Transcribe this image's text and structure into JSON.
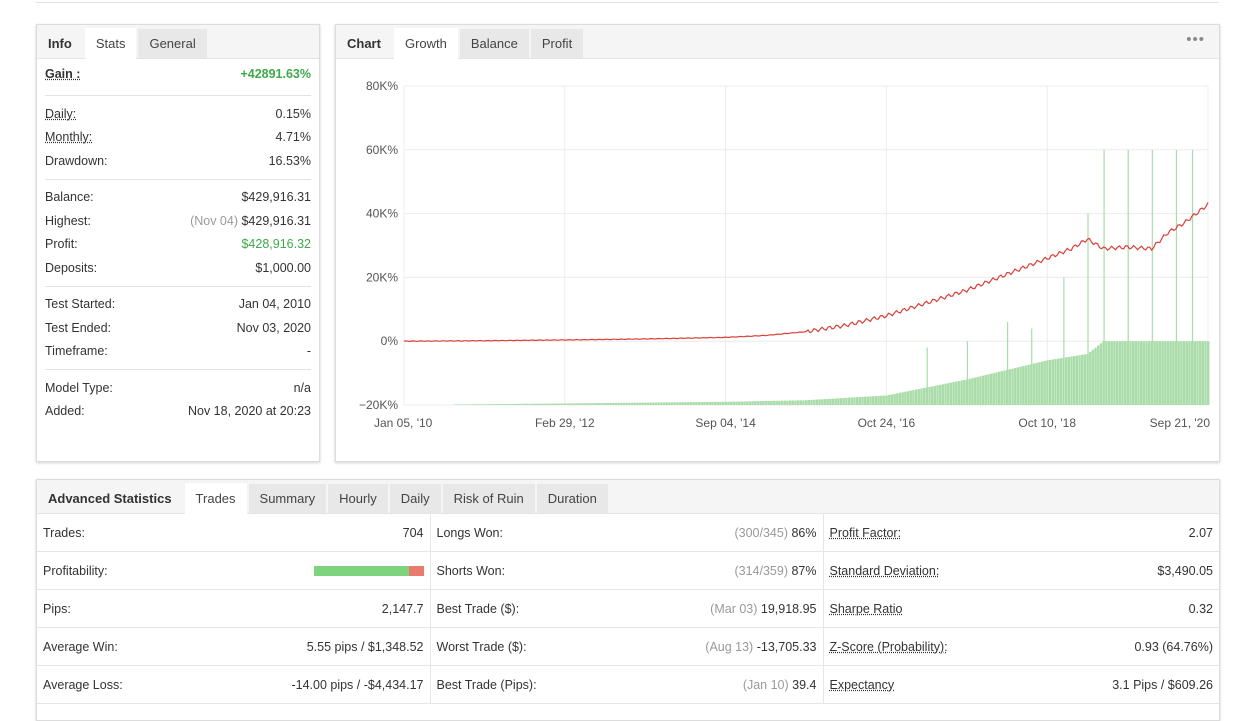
{
  "info_panel": {
    "tabs": [
      "Info",
      "Stats",
      "General"
    ],
    "active_tab": "Stats",
    "gain": {
      "label": "Gain :",
      "value": "+42891.63%"
    },
    "daily": {
      "label": "Daily:",
      "value": "0.15%"
    },
    "monthly": {
      "label": "Monthly:",
      "value": "4.71%"
    },
    "drawdown": {
      "label": "Drawdown:",
      "value": "16.53%"
    },
    "balance": {
      "label": "Balance:",
      "value": "$429,916.31"
    },
    "highest": {
      "label": "Highest:",
      "date": "(Nov 04)",
      "value": "$429,916.31"
    },
    "profit": {
      "label": "Profit:",
      "value": "$428,916.32"
    },
    "deposits": {
      "label": "Deposits:",
      "value": "$1,000.00"
    },
    "test_started": {
      "label": "Test Started:",
      "value": "Jan 04, 2010"
    },
    "test_ended": {
      "label": "Test Ended:",
      "value": "Nov 03, 2020"
    },
    "timeframe": {
      "label": "Timeframe:",
      "value": "-"
    },
    "model_type": {
      "label": "Model Type:",
      "value": "n/a"
    },
    "added": {
      "label": "Added:",
      "value": "Nov 18, 2020 at 20:23"
    }
  },
  "chart_panel": {
    "title": "Chart",
    "tabs": [
      "Growth",
      "Balance",
      "Profit"
    ],
    "active_tab": "Growth",
    "menu_icon": "more-dots-icon"
  },
  "chart_data": {
    "type": "line",
    "title": "Growth",
    "xlabel": "",
    "ylabel": "",
    "ylim": [
      -20000,
      80000
    ],
    "y_ticks": [
      "80K%",
      "60K%",
      "40K%",
      "20K%",
      "0%",
      "−20K%"
    ],
    "y_tick_values": [
      80000,
      60000,
      40000,
      20000,
      0,
      -20000
    ],
    "x_ticks": [
      "Jan 05, '10",
      "Feb 29, '12",
      "Sep 04, '14",
      "Oct 24, '16",
      "Oct 10, '18",
      "Sep 21, '20"
    ],
    "series": [
      {
        "name": "Growth",
        "color": "#d9413a",
        "x": [
          0,
          0.1,
          0.2,
          0.3,
          0.4,
          0.45,
          0.5,
          0.55,
          0.6,
          0.65,
          0.7,
          0.75,
          0.8,
          0.83,
          0.85,
          0.87,
          0.9,
          0.93,
          0.95,
          0.97,
          1.0
        ],
        "values": [
          0,
          150,
          400,
          700,
          1200,
          1800,
          3000,
          5000,
          8000,
          12000,
          16000,
          21000,
          26000,
          29000,
          32000,
          29000,
          29500,
          29000,
          34000,
          37000,
          42891
        ]
      },
      {
        "name": "Drawdown bars",
        "color": "#a9dca9",
        "type": "bar",
        "x": [
          0,
          0.2,
          0.4,
          0.5,
          0.6,
          0.7,
          0.75,
          0.8,
          0.85,
          0.87,
          0.9,
          0.95,
          1.0
        ],
        "values": [
          -20000,
          -19500,
          -19000,
          -18500,
          -17000,
          -12000,
          -9000,
          -6000,
          -4000,
          0,
          0,
          0,
          0
        ]
      }
    ]
  },
  "advanced": {
    "title": "Advanced Statistics",
    "tabs": [
      "Trades",
      "Summary",
      "Hourly",
      "Daily",
      "Risk of Ruin",
      "Duration"
    ],
    "active_tab": "Trades",
    "rows": [
      {
        "l1": "Trades:",
        "v1": "704",
        "l2": "Longs Won:",
        "p2": "(300/345)",
        "v2": "86%",
        "l3": "Profit Factor:",
        "v3": "2.07"
      },
      {
        "l1": "Profitability:",
        "v1": "",
        "l2": "Shorts Won:",
        "p2": "(314/359)",
        "v2": "87%",
        "l3": "Standard Deviation:",
        "v3": "$3,490.05"
      },
      {
        "l1": "Pips:",
        "v1": "2,147.7",
        "l2": "Best Trade ($):",
        "p2": "(Mar 03)",
        "v2": "19,918.95",
        "l3": "Sharpe Ratio",
        "v3": "0.32"
      },
      {
        "l1": "Average Win:",
        "v1": "5.55 pips / $1,348.52",
        "l2": "Worst Trade ($):",
        "p2": "(Aug 13)",
        "v2": "-13,705.33",
        "l3": "Z-Score (Probability):",
        "v3": "0.93 (64.76%)"
      },
      {
        "l1": "Average Loss:",
        "v1": "-14.00 pips / -$4,434.17",
        "l2": "Best Trade (Pips):",
        "p2": "(Jan 10)",
        "v2": "39.4",
        "l3": "Expectancy",
        "v3": "3.1 Pips / $609.26"
      }
    ],
    "profitability": {
      "won_fraction": 0.87
    }
  }
}
